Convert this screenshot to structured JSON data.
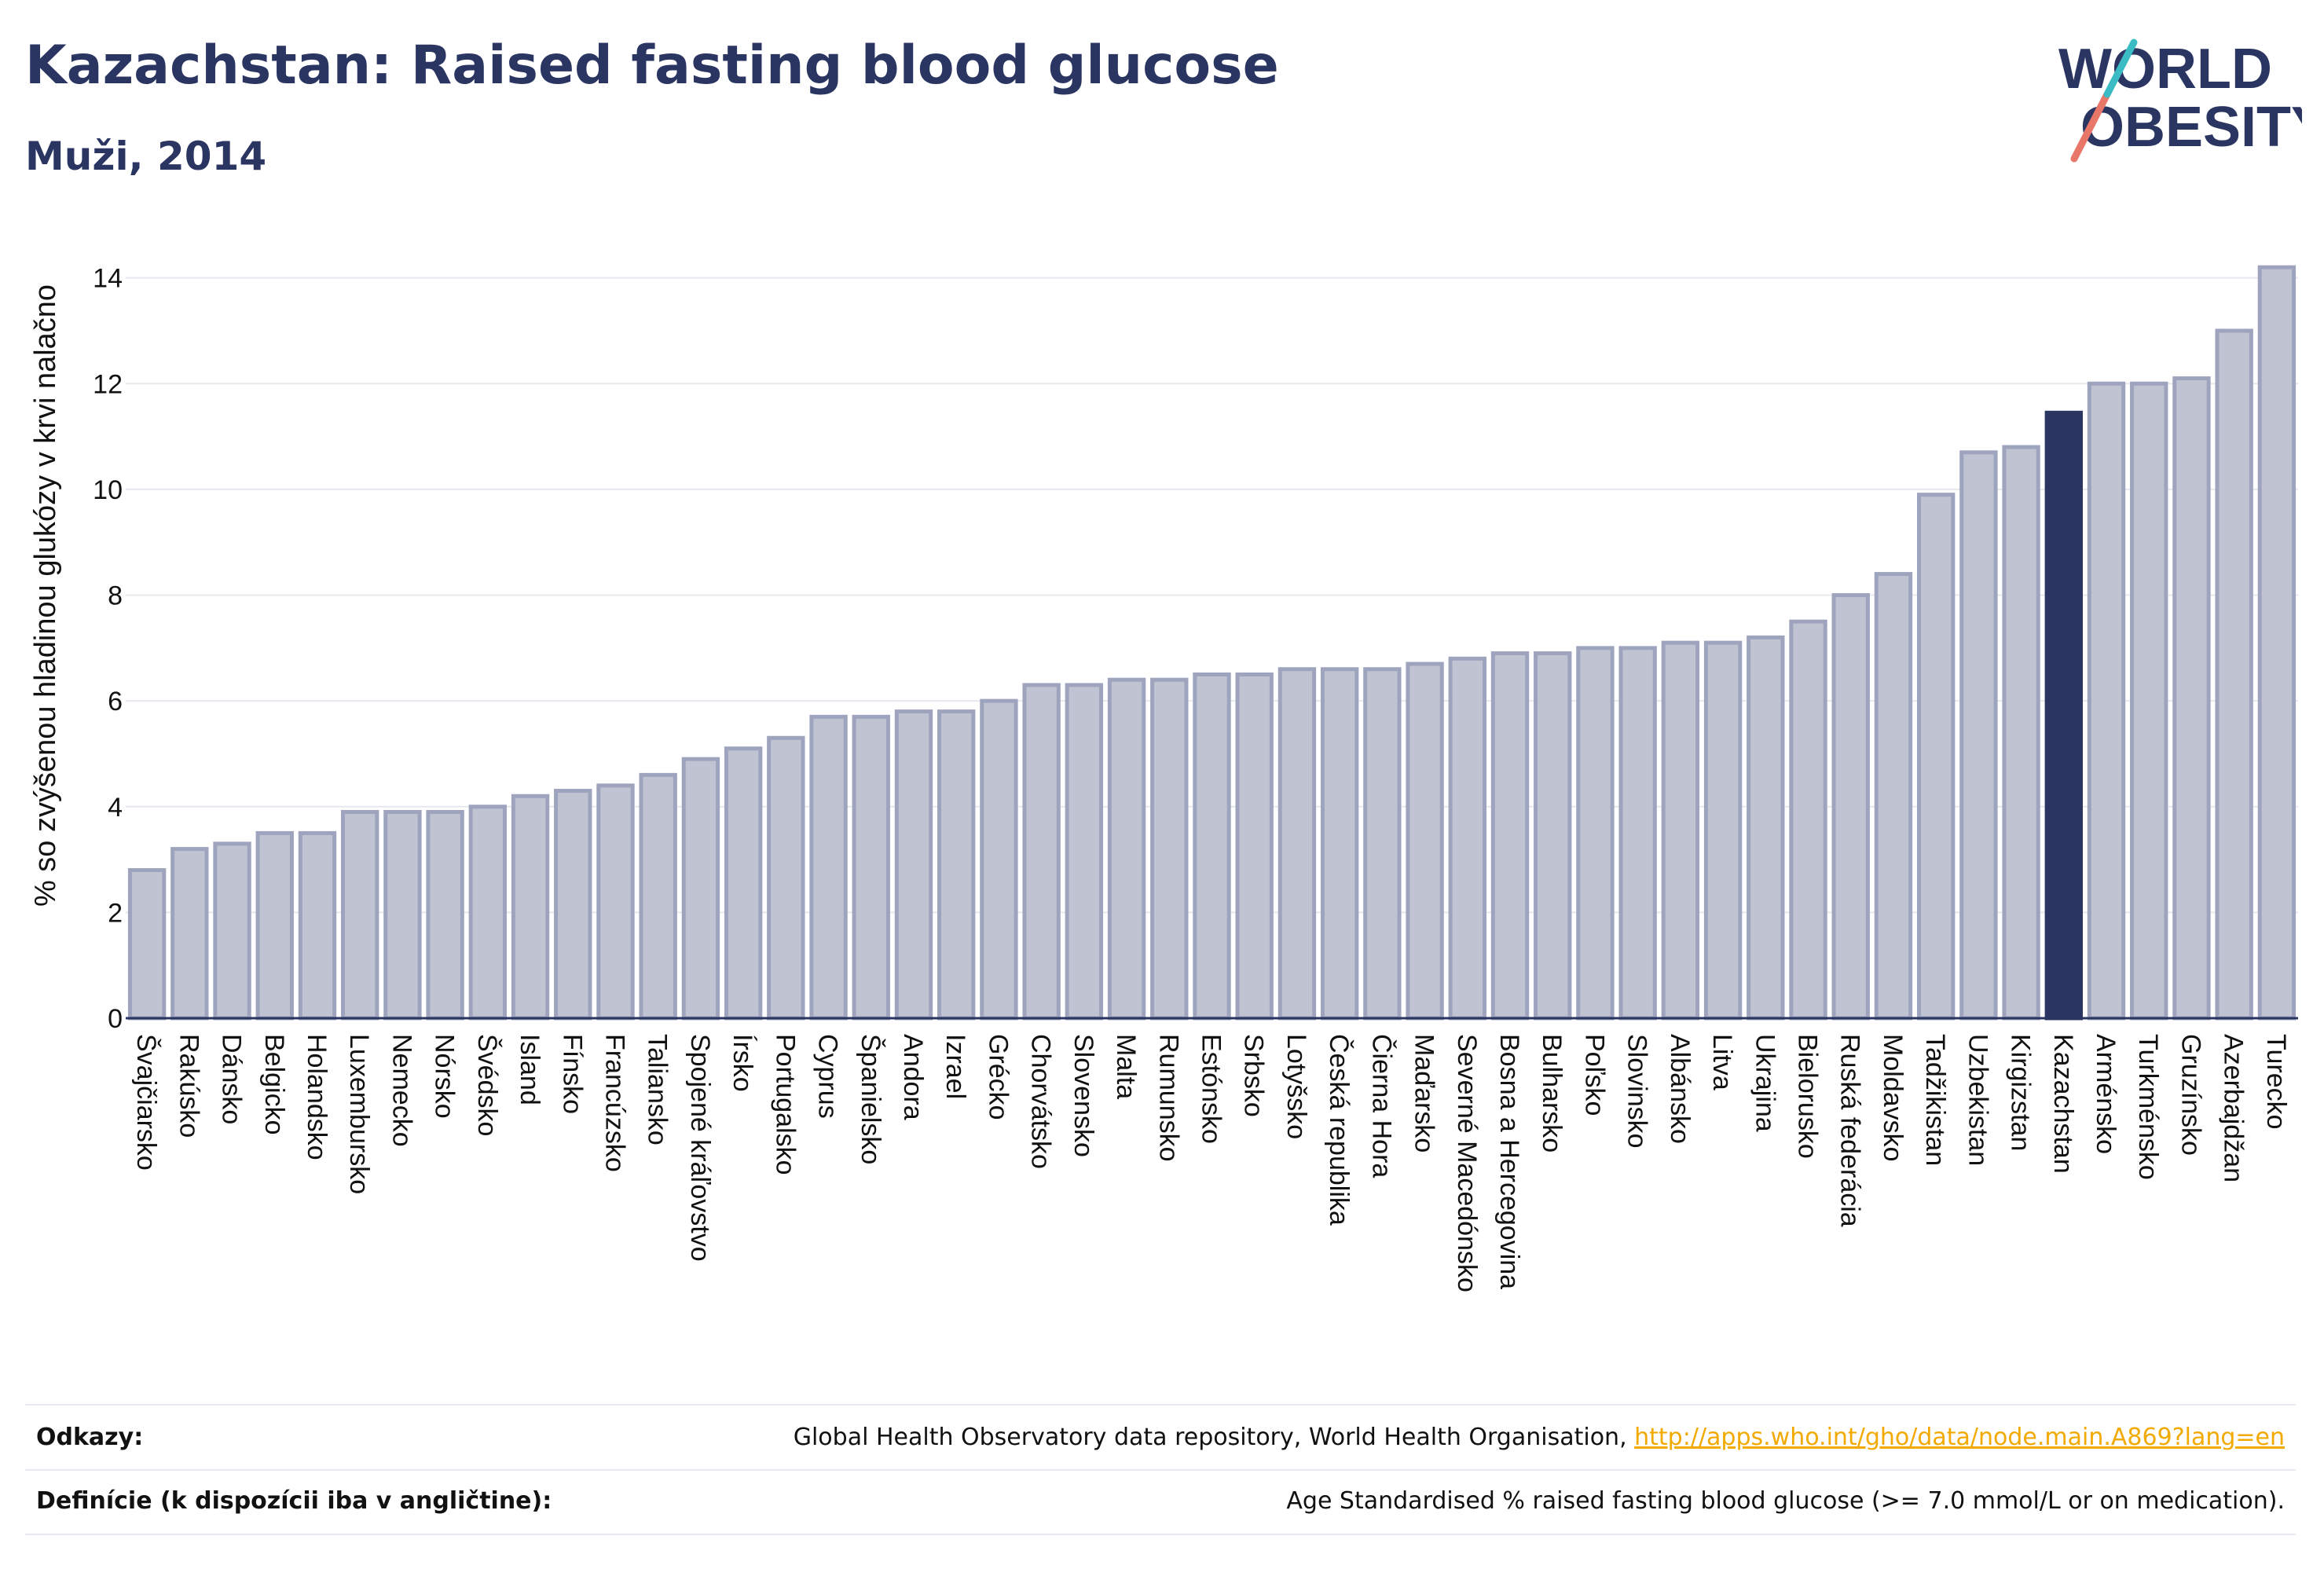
{
  "header": {
    "title": "Kazachstan: Raised fasting blood glucose",
    "subtitle": "Muži, 2014"
  },
  "logo": {
    "line1": "WORLD",
    "line2": "OBESITY"
  },
  "colors": {
    "bar": "#bfc3d2",
    "bar_border": "#9ea4bd",
    "highlight": "#2b3562",
    "grid": "#e6e8ee",
    "link": "#f2a900"
  },
  "chart_data": {
    "type": "bar",
    "ylabel": "% so zvýšenou hladinou glukózy v krvi nalačno",
    "ylim": [
      0,
      14.5
    ],
    "yticks": [
      0,
      2,
      4,
      6,
      8,
      10,
      12,
      14
    ],
    "grid": true,
    "highlight": "Kazachstan",
    "categories": [
      "Švajčiarsko",
      "Rakúsko",
      "Dánsko",
      "Belgicko",
      "Holandsko",
      "Luxembursko",
      "Nemecko",
      "Nórsko",
      "Švédsko",
      "Island",
      "Fínsko",
      "Francúzsko",
      "Taliansko",
      "Spojené kráľovstvo",
      "Írsko",
      "Portugalsko",
      "Cyprus",
      "Španielsko",
      "Andora",
      "Izrael",
      "Grécko",
      "Chorvátsko",
      "Slovensko",
      "Malta",
      "Rumunsko",
      "Estónsko",
      "Srbsko",
      "Lotyšsko",
      "Česká republika",
      "Čierna Hora",
      "Maďarsko",
      "Severné Macedónsko",
      "Bosna a Hercegovina",
      "Bulharsko",
      "Poľsko",
      "Slovinsko",
      "Albánsko",
      "Litva",
      "Ukrajina",
      "Bielorusko",
      "Ruská federácia",
      "Moldavsko",
      "Tadžikistan",
      "Uzbekistan",
      "Kirgizstan",
      "Kazachstan",
      "Arménsko",
      "Turkménsko",
      "Gruzínsko",
      "Azerbajdžan",
      "Turecko"
    ],
    "values": [
      2.8,
      3.2,
      3.3,
      3.5,
      3.5,
      3.9,
      3.9,
      3.9,
      4.0,
      4.2,
      4.3,
      4.4,
      4.6,
      4.9,
      5.1,
      5.3,
      5.7,
      5.7,
      5.8,
      5.8,
      6.0,
      6.3,
      6.3,
      6.4,
      6.4,
      6.5,
      6.5,
      6.6,
      6.6,
      6.6,
      6.7,
      6.8,
      6.9,
      6.9,
      7.0,
      7.0,
      7.1,
      7.1,
      7.2,
      7.5,
      8.0,
      8.4,
      9.9,
      10.7,
      10.8,
      11.45,
      12.0,
      12.0,
      12.1,
      13.0,
      14.2
    ]
  },
  "footer": {
    "refs_label": "Odkazy:",
    "refs_text": "Global Health Observatory data repository, World Health Organisation, ",
    "refs_link": "http://apps.who.int/gho/data/node.main.A869?lang=en",
    "defs_label": "Definície (k dispozícii iba v angličtine):",
    "defs_text": "Age Standardised % raised fasting blood glucose (>= 7.0 mmol/L or on medication)."
  }
}
